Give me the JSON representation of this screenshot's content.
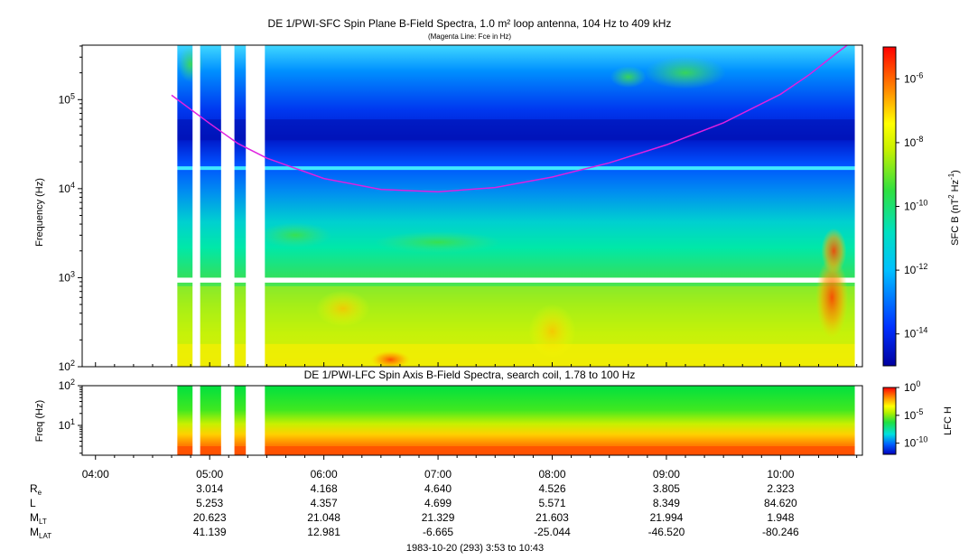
{
  "chart_data": [
    {
      "type": "heatmap",
      "title": "DE 1/PWI-SFC  Spin Plane B-Field Spectra, 1.0 m² loop antenna, 104 Hz to 409 kHz",
      "subtitle": "(Magenta Line: Fce in Hz)",
      "ylabel": "Frequency (Hz)",
      "yscale": "log",
      "ylim": [
        100,
        409000
      ],
      "y_ticks": [
        {
          "value": 100,
          "base": "10",
          "exp": "2"
        },
        {
          "value": 1000,
          "base": "10",
          "exp": "3"
        },
        {
          "value": 10000,
          "base": "10",
          "exp": "4"
        },
        {
          "value": 100000,
          "base": "10",
          "exp": "5"
        }
      ],
      "colorbar": {
        "label_main": "SFC B (nT",
        "label_sup1": "2",
        "label_mid": " Hz",
        "label_sup2": "-1",
        "label_end": ")",
        "scale": "log",
        "range": [
          1e-15,
          1e-05
        ],
        "ticks": [
          {
            "value": 1e-06,
            "base": "10",
            "exp": "-6"
          },
          {
            "value": 1e-08,
            "base": "10",
            "exp": "-8"
          },
          {
            "value": 1e-10,
            "base": "10",
            "exp": "-10"
          },
          {
            "value": 1e-12,
            "base": "10",
            "exp": "-12"
          },
          {
            "value": 1e-14,
            "base": "10",
            "exp": "-14"
          }
        ]
      },
      "fce_line": {
        "color": "#e020e0",
        "x": [
          "04:40",
          "05:00",
          "05:15",
          "05:30",
          "06:00",
          "06:30",
          "07:00",
          "07:30",
          "08:00",
          "08:30",
          "09:00",
          "09:30",
          "10:00",
          "10:15",
          "10:30",
          "10:35"
        ],
        "y": [
          112000,
          54000,
          32000,
          22000,
          13000,
          9800,
          9200,
          10300,
          13500,
          19500,
          31000,
          55000,
          115000,
          190000,
          340000,
          409000
        ]
      },
      "data_gaps": [
        [
          "03:53",
          "04:43"
        ],
        [
          "04:51",
          "04:55"
        ],
        [
          "05:06",
          "05:13"
        ],
        [
          "05:19",
          "05:29"
        ],
        [
          "10:39",
          "10:43"
        ]
      ],
      "annotations": []
    },
    {
      "type": "heatmap",
      "title": "DE 1/PWI-LFC  Spin Axis B-Field Spectra, search coil, 1.78 to 100 Hz",
      "ylabel": "Freq (Hz)",
      "yscale": "log",
      "ylim": [
        1.78,
        100
      ],
      "y_ticks": [
        {
          "value": 10,
          "base": "10",
          "exp": "1"
        },
        {
          "value": 100,
          "base": "10",
          "exp": "2"
        }
      ],
      "colorbar": {
        "label": "LFC H",
        "scale": "log",
        "range": [
          1e-12,
          1
        ],
        "ticks": [
          {
            "value": 1,
            "base": "10",
            "exp": "0"
          },
          {
            "value": 1e-05,
            "base": "10",
            "exp": "-5"
          },
          {
            "value": 1e-10,
            "base": "10",
            "exp": "-10"
          }
        ]
      }
    }
  ],
  "x_axis": {
    "range": [
      "03:53",
      "10:43"
    ],
    "ticks": [
      "04:00",
      "05:00",
      "06:00",
      "07:00",
      "08:00",
      "09:00",
      "10:00"
    ],
    "xlabel": "1983-10-20 (293) 3:53 to 10:43"
  },
  "ephemeris": {
    "labels": [
      {
        "main": "R",
        "sub": "e"
      },
      {
        "main": "L",
        "sub": ""
      },
      {
        "main": "M",
        "sub": "LT"
      },
      {
        "main": "M",
        "sub": "LAT"
      }
    ],
    "times": [
      "05:00",
      "06:00",
      "07:00",
      "08:00",
      "09:00",
      "10:00"
    ],
    "rows": [
      [
        "3.014",
        "4.168",
        "4.640",
        "4.526",
        "3.805",
        "2.323"
      ],
      [
        "5.253",
        "4.357",
        "4.699",
        "5.571",
        "8.349",
        "84.620"
      ],
      [
        "20.623",
        "21.048",
        "21.329",
        "21.603",
        "21.994",
        "1.948"
      ],
      [
        "41.139",
        "12.981",
        "-6.665",
        "-25.044",
        "-46.520",
        "-80.246"
      ]
    ]
  }
}
